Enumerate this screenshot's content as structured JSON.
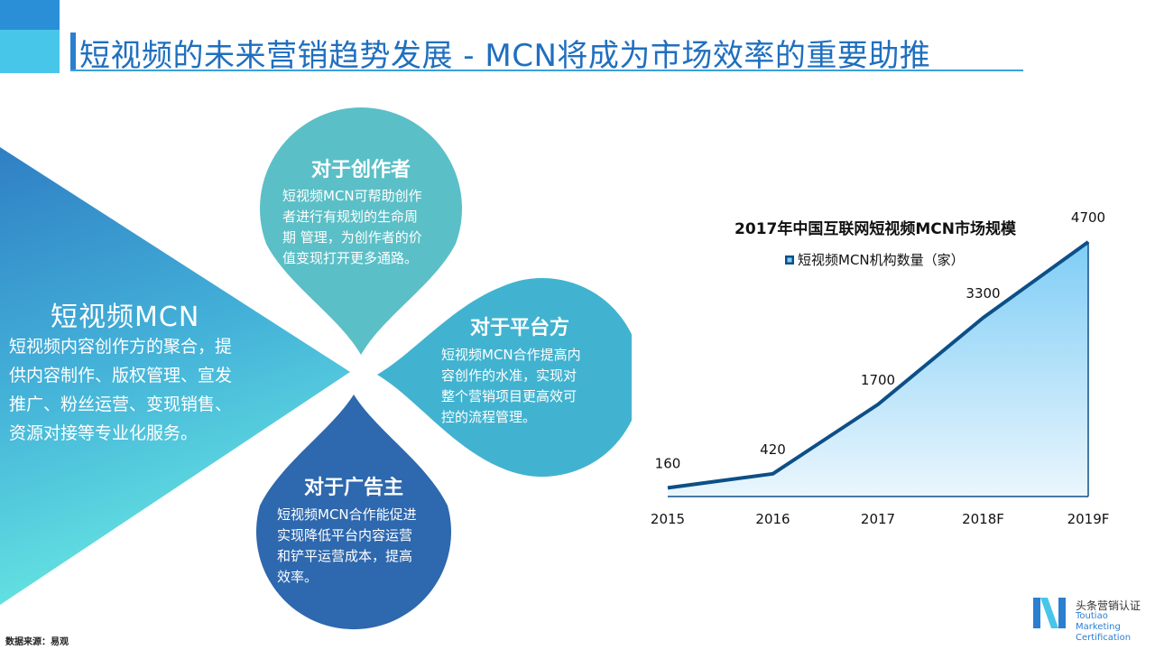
{
  "header": {
    "title": "短视频的未来营销趋势发展 - MCN将成为市场效率的重要助推"
  },
  "mcn": {
    "title": "短视频MCN",
    "body": [
      "短视频内容创作方的聚合，提",
      "供内容制作、版权管理、宣发",
      "推广、粉丝运营、变现销售、",
      "资源对接等专业化服务。"
    ]
  },
  "petals": {
    "creator": {
      "title": "对于创作者",
      "body": [
        "短视频MCN可帮助创作",
        "者进行有规划的生命周",
        "期  管理，为创作者的价",
        "值变现打开更多通路。"
      ]
    },
    "platform": {
      "title": "对于平台方",
      "body": [
        "短视频MCN合作提高内",
        "容创作的水准，实现对",
        "整个营销项目更高效可",
        "控的流程管理。"
      ]
    },
    "advertiser": {
      "title": "对于广告主",
      "body": [
        "短视频MCN合作能促进",
        "实现降低平台内容运营",
        "和铲平运营成本，提高",
        "效率。"
      ]
    }
  },
  "colors": {
    "corner_dark": "#2a8fd6",
    "corner_light": "#48c6e9",
    "petal_creator": "#5bbfc7",
    "petal_platform": "#41b3d0",
    "petal_advertiser": "#2e68ae",
    "chart_line": "#0d4f87",
    "chart_fill_top": "#7fcdf6"
  },
  "chart_data": {
    "type": "area",
    "title": "2017年中国互联网短视频MCN市场规模",
    "categories": [
      "2015",
      "2016",
      "2017",
      "2018F",
      "2019F"
    ],
    "series": [
      {
        "name": "短视频MCN机构数量（家）",
        "values": [
          160,
          420,
          1700,
          3300,
          4700
        ]
      }
    ],
    "data_labels": [
      "160",
      "420",
      "1700",
      "3300",
      "4700"
    ],
    "legend_position": "top",
    "ylim": [
      0,
      5000
    ],
    "grid": false
  },
  "footer": {
    "source": "数据来源：易观",
    "logo_cn": "头条营销认证",
    "logo_en_1": "Toutiao Marketing",
    "logo_en_2": "Certification"
  }
}
